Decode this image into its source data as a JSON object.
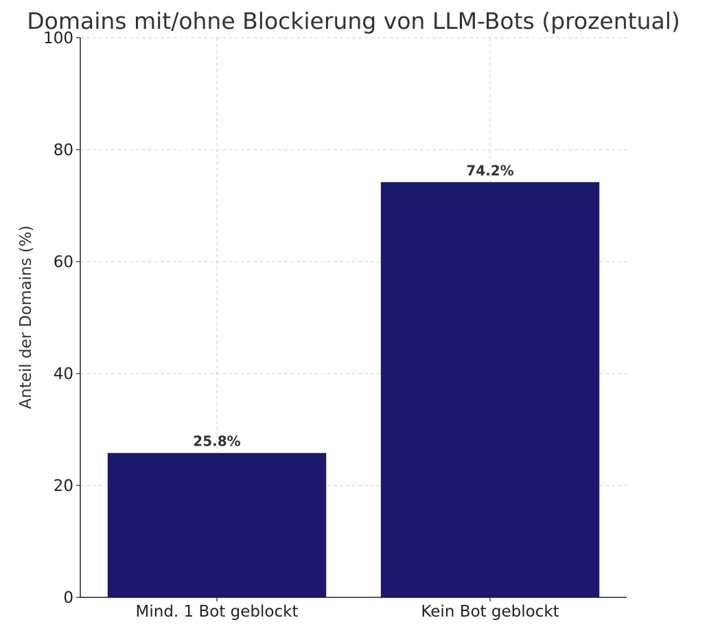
{
  "chart_data": {
    "type": "bar",
    "title": "Domains mit/ohne Blockierung von LLM-Bots (prozentual)",
    "xlabel": "",
    "ylabel": "Anteil der Domains (%)",
    "categories": [
      "Mind. 1 Bot geblockt",
      "Kein Bot geblockt"
    ],
    "values": [
      25.8,
      74.2
    ],
    "value_labels": [
      "25.8%",
      "74.2%"
    ],
    "ylim": [
      0,
      100
    ],
    "yticks": [
      0,
      20,
      40,
      60,
      80,
      100
    ],
    "ytick_labels": [
      "0",
      "20",
      "40",
      "60",
      "80",
      "100"
    ],
    "grid": true,
    "bar_color": "#1b196b"
  }
}
